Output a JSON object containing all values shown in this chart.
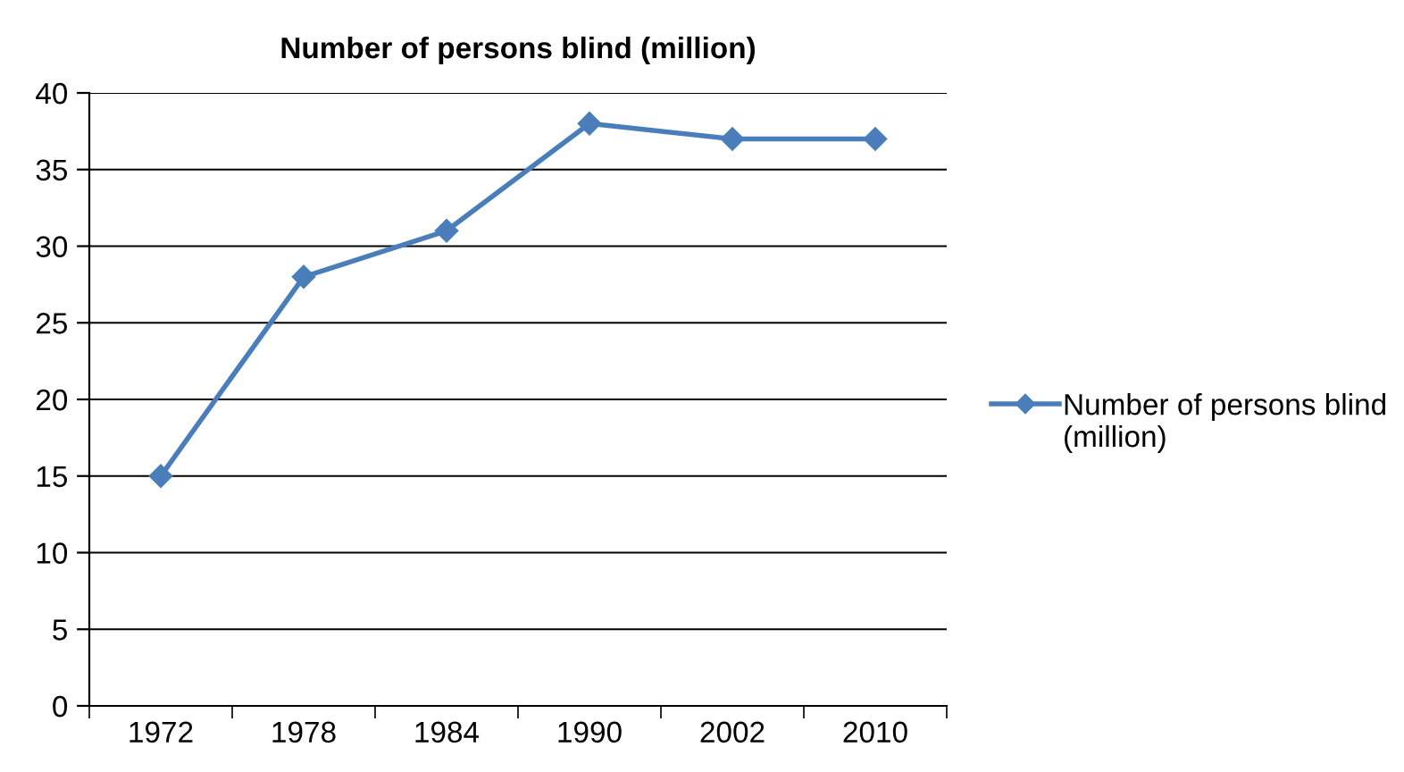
{
  "chart_data": {
    "type": "line",
    "title": "Number of persons blind (million)",
    "categories": [
      "1972",
      "1978",
      "1984",
      "1990",
      "2002",
      "2010"
    ],
    "series": [
      {
        "name": "Number of persons blind (million)",
        "color": "#4a7ebb",
        "values": [
          15,
          28,
          31,
          38,
          37,
          37
        ]
      }
    ],
    "ylim": [
      0,
      40
    ],
    "yticks": [
      0,
      5,
      10,
      15,
      20,
      25,
      30,
      35,
      40
    ],
    "grid": "y",
    "legend": "right",
    "marker": "diamond",
    "line_style": "solid"
  }
}
